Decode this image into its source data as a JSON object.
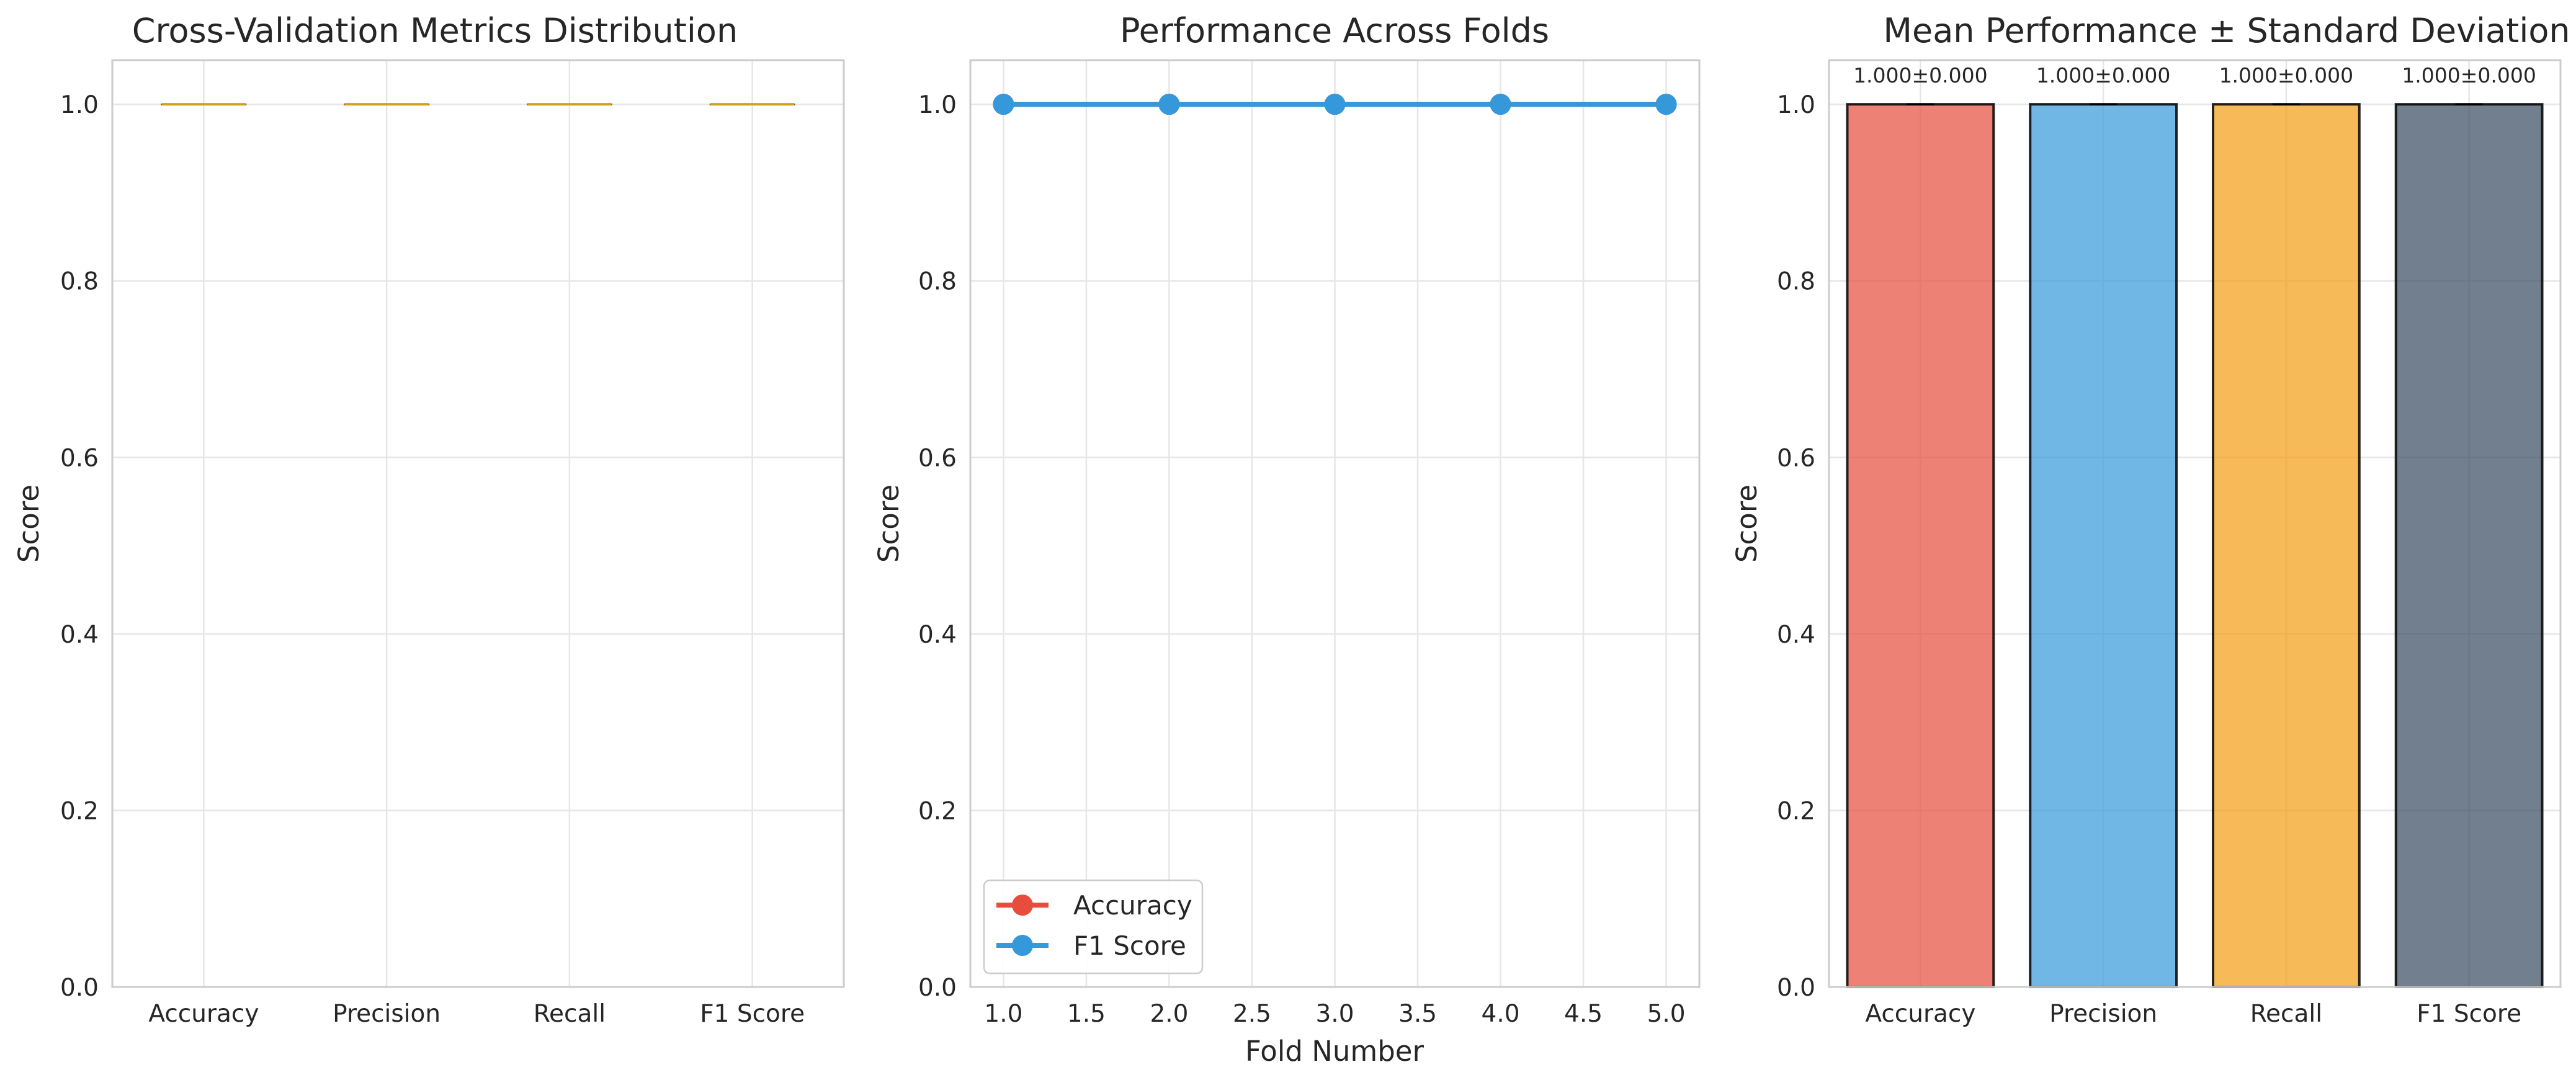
{
  "chart_data": [
    {
      "type": "box",
      "title": "Cross-Validation Metrics Distribution",
      "xlabel": "",
      "ylabel": "Score",
      "categories": [
        "Accuracy",
        "Precision",
        "Recall",
        "F1 Score"
      ],
      "values": [
        [
          1.0,
          1.0,
          1.0,
          1.0,
          1.0
        ],
        [
          1.0,
          1.0,
          1.0,
          1.0,
          1.0
        ],
        [
          1.0,
          1.0,
          1.0,
          1.0,
          1.0
        ],
        [
          1.0,
          1.0,
          1.0,
          1.0,
          1.0
        ]
      ],
      "ylim": [
        0.0,
        1.05
      ],
      "yticks": [
        0.0,
        0.2,
        0.4,
        0.6,
        0.8,
        1.0
      ],
      "yticklabels": [
        "0.0",
        "0.2",
        "0.4",
        "0.6",
        "0.8",
        "1.0"
      ],
      "median_color": "#d4a017",
      "grid": true
    },
    {
      "type": "line",
      "title": "Performance Across Folds",
      "xlabel": "Fold Number",
      "ylabel": "Score",
      "x": [
        1,
        2,
        3,
        4,
        5
      ],
      "series": [
        {
          "name": "Accuracy",
          "values": [
            1.0,
            1.0,
            1.0,
            1.0,
            1.0
          ],
          "color": "#e74c3c"
        },
        {
          "name": "F1 Score",
          "values": [
            1.0,
            1.0,
            1.0,
            1.0,
            1.0
          ],
          "color": "#3498db"
        }
      ],
      "xlim": [
        0.8,
        5.2
      ],
      "ylim": [
        0.0,
        1.05
      ],
      "xticks": [
        1.0,
        1.5,
        2.0,
        2.5,
        3.0,
        3.5,
        4.0,
        4.5,
        5.0
      ],
      "xticklabels": [
        "1.0",
        "1.5",
        "2.0",
        "2.5",
        "3.0",
        "3.5",
        "4.0",
        "4.5",
        "5.0"
      ],
      "yticks": [
        0.0,
        0.2,
        0.4,
        0.6,
        0.8,
        1.0
      ],
      "yticklabels": [
        "0.0",
        "0.2",
        "0.4",
        "0.6",
        "0.8",
        "1.0"
      ],
      "legend": "lower-left",
      "grid": true
    },
    {
      "type": "bar",
      "title": "Mean Performance ± Standard Deviation",
      "xlabel": "",
      "ylabel": "Score",
      "categories": [
        "Accuracy",
        "Precision",
        "Recall",
        "F1 Score"
      ],
      "values": [
        1.0,
        1.0,
        1.0,
        1.0
      ],
      "errors": [
        0.0,
        0.0,
        0.0,
        0.0
      ],
      "data_labels": [
        "1.000±0.000",
        "1.000±0.000",
        "1.000±0.000",
        "1.000±0.000"
      ],
      "colors": [
        "#e74c3c",
        "#3498db",
        "#f39c12",
        "#34495e"
      ],
      "ylim": [
        0.0,
        1.05
      ],
      "yticks": [
        0.0,
        0.2,
        0.4,
        0.6,
        0.8,
        1.0
      ],
      "yticklabels": [
        "0.0",
        "0.2",
        "0.4",
        "0.6",
        "0.8",
        "1.0"
      ],
      "grid": true
    }
  ]
}
